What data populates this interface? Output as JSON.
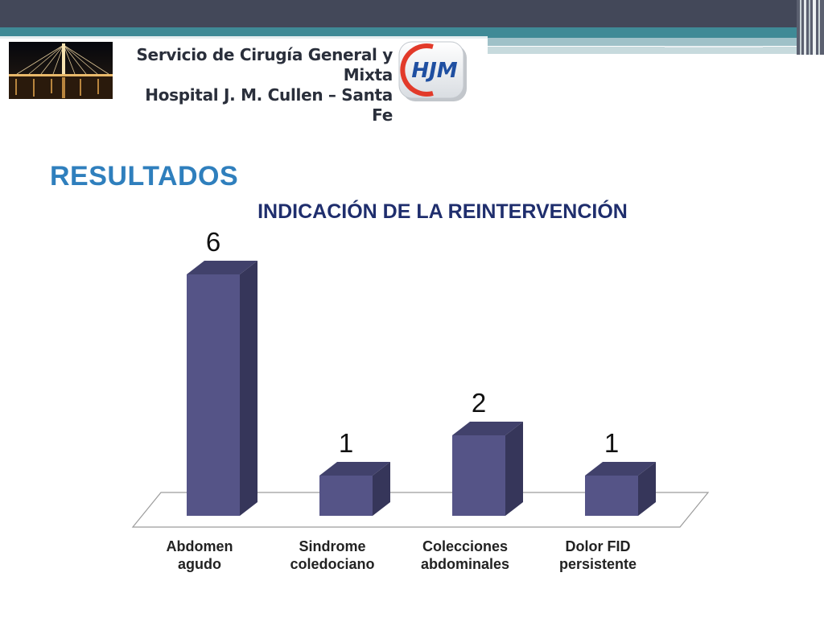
{
  "header": {
    "service": "Servicio de Cirugía General y Mixta",
    "hospital": "Hospital J. M. Cullen – Santa Fe",
    "logo_text": "HJM"
  },
  "slide": {
    "title": "RESULTADOS"
  },
  "colors": {
    "bar_front": "#555487",
    "bar_side": "#36365a",
    "bar_top": "#41416b",
    "title_blue": "#2f7fbd",
    "chart_title": "#1f2e6d"
  },
  "chart_data": {
    "type": "bar",
    "title": "INDICACIÓN DE LA REINTERVENCIÓN",
    "categories": [
      [
        "Abdomen",
        "agudo"
      ],
      [
        "Sindrome",
        "coledociano"
      ],
      [
        "Colecciones",
        "abdominales"
      ],
      [
        "Dolor FID",
        "persistente"
      ]
    ],
    "values": [
      6,
      1,
      2,
      1
    ],
    "data_labels": [
      "6",
      "1",
      "2",
      "1"
    ],
    "ylim": [
      0,
      6
    ],
    "grid": false,
    "legend": "none",
    "style": "3d"
  }
}
